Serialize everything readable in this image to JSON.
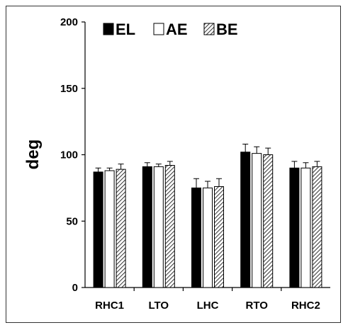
{
  "chart_data": {
    "type": "bar",
    "title": "",
    "xlabel": "",
    "ylabel": "deg",
    "ylim": [
      0,
      200
    ],
    "yticks": [
      0,
      50,
      100,
      150,
      200
    ],
    "grid": false,
    "legend_position": "top",
    "categories": [
      "RHC1",
      "LTO",
      "LHC",
      "RTO",
      "RHC2"
    ],
    "series": [
      {
        "name": "EL",
        "fill": "solid",
        "color": "#000000",
        "values": [
          87,
          91,
          75,
          102,
          90
        ],
        "errors": [
          3,
          3,
          7,
          6,
          5
        ]
      },
      {
        "name": "AE",
        "fill": "white",
        "color": "#ffffff",
        "values": [
          88,
          91,
          75,
          101,
          90
        ],
        "errors": [
          2,
          2,
          5,
          5,
          4
        ]
      },
      {
        "name": "BE",
        "fill": "hatched",
        "color": "#666666",
        "values": [
          89,
          92,
          76,
          100,
          91
        ],
        "errors": [
          4,
          3,
          6,
          5,
          4
        ]
      }
    ]
  }
}
